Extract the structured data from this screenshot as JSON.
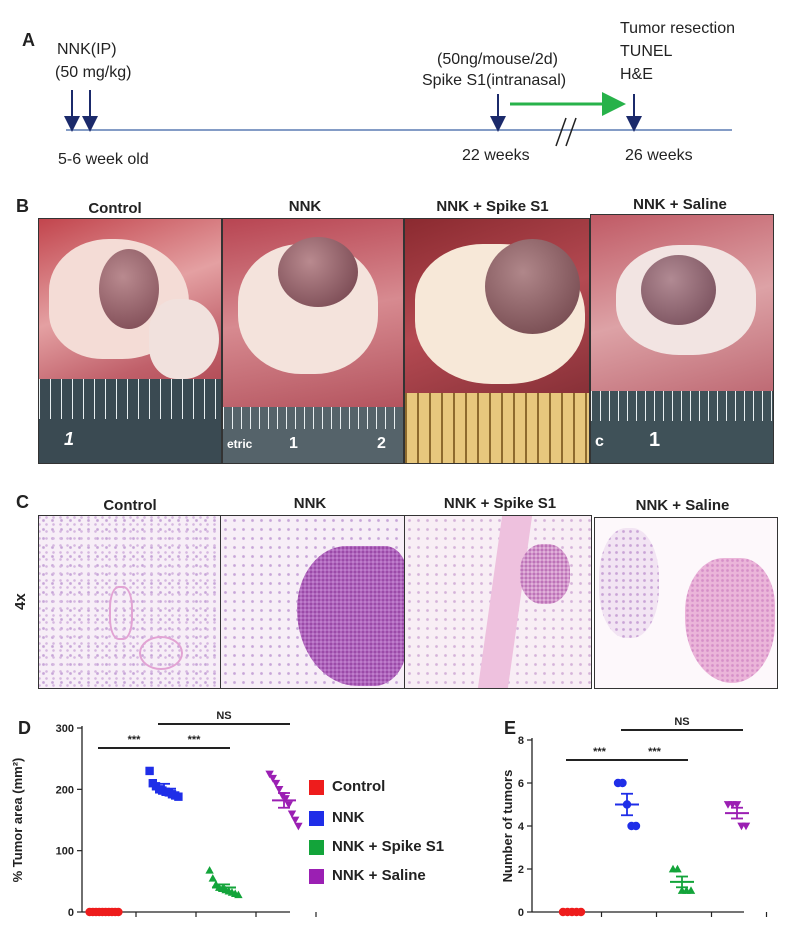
{
  "panelA": {
    "letter": "A",
    "nnk_line1": "NNK(IP)",
    "nnk_line2": "(50 mg/kg)",
    "spike_line1": "(50ng/mouse/2d)",
    "spike_line2": "Spike S1(intranasal)",
    "end_line1": "Tumor resection",
    "end_line2": "TUNEL",
    "end_line3": "H&E",
    "t0": "5-6 week old",
    "t1": "22 weeks",
    "t2": "26 weeks"
  },
  "panelB": {
    "letter": "B",
    "groups": [
      "Control",
      "NNK",
      "NNK + Spike S1",
      "NNK + Saline"
    ],
    "ruler_labels": [
      [
        "1"
      ],
      [
        "etric",
        "1",
        "2"
      ],
      [],
      [
        "c",
        "1"
      ]
    ]
  },
  "panelC": {
    "letter": "C",
    "mag": "4x",
    "groups": [
      "Control",
      "NNK",
      "NNK + Spike S1",
      "NNK + Saline"
    ]
  },
  "legend": [
    {
      "label": "Control",
      "color": "#ee1c1c"
    },
    {
      "label": "NNK",
      "color": "#1f2ee8"
    },
    {
      "label": "NNK + Spike S1",
      "color": "#13a43a"
    },
    {
      "label": "NNK + Saline",
      "color": "#9b1fb3"
    }
  ],
  "chart_data": [
    {
      "panel": "D",
      "type": "scatter",
      "ylabel": "% Tumor area (mm²)",
      "ylim": [
        0,
        300
      ],
      "yticks": [
        0,
        100,
        200,
        300
      ],
      "groups": [
        "Control",
        "NNK",
        "NNK + Spike S1",
        "NNK + Saline"
      ],
      "colors": [
        "#ee1c1c",
        "#1f2ee8",
        "#13a43a",
        "#9b1fb3"
      ],
      "markers": [
        "circle",
        "square",
        "triangle",
        "triangle-down"
      ],
      "means": [
        0,
        201,
        40,
        182
      ],
      "errors": [
        0,
        8,
        5,
        12
      ],
      "points": [
        [
          0,
          0,
          0,
          0,
          0,
          0,
          0,
          0,
          0,
          0
        ],
        [
          230,
          210,
          205,
          200,
          198,
          196,
          195,
          192,
          190,
          188
        ],
        [
          68,
          55,
          45,
          40,
          38,
          36,
          34,
          32,
          30,
          28
        ],
        [
          225,
          218,
          210,
          200,
          190,
          185,
          175,
          160,
          150,
          140
        ]
      ],
      "annotations": [
        {
          "text": "***",
          "between": [
            0,
            1
          ]
        },
        {
          "text": "***",
          "between": [
            1,
            2
          ]
        },
        {
          "text": "NS",
          "between": [
            1,
            3
          ]
        }
      ]
    },
    {
      "panel": "E",
      "type": "scatter",
      "ylabel": "Number of tumors",
      "ylim": [
        0,
        8
      ],
      "yticks": [
        0,
        2,
        4,
        6,
        8
      ],
      "groups": [
        "Control",
        "NNK",
        "NNK + Spike S1",
        "NNK + Saline"
      ],
      "colors": [
        "#ee1c1c",
        "#1f2ee8",
        "#13a43a",
        "#9b1fb3"
      ],
      "markers": [
        "circle",
        "circle",
        "triangle",
        "triangle-down"
      ],
      "means": [
        0,
        5,
        1.4,
        4.6
      ],
      "errors": [
        0,
        0.5,
        0.25,
        0.25
      ],
      "points": [
        [
          0,
          0,
          0,
          0,
          0
        ],
        [
          6,
          6,
          5,
          4,
          4
        ],
        [
          2,
          2,
          1,
          1,
          1
        ],
        [
          5,
          5,
          5,
          4,
          4
        ]
      ],
      "annotations": [
        {
          "text": "***",
          "between": [
            0,
            1
          ]
        },
        {
          "text": "***",
          "between": [
            1,
            2
          ]
        },
        {
          "text": "NS",
          "between": [
            1,
            3
          ]
        }
      ]
    }
  ]
}
